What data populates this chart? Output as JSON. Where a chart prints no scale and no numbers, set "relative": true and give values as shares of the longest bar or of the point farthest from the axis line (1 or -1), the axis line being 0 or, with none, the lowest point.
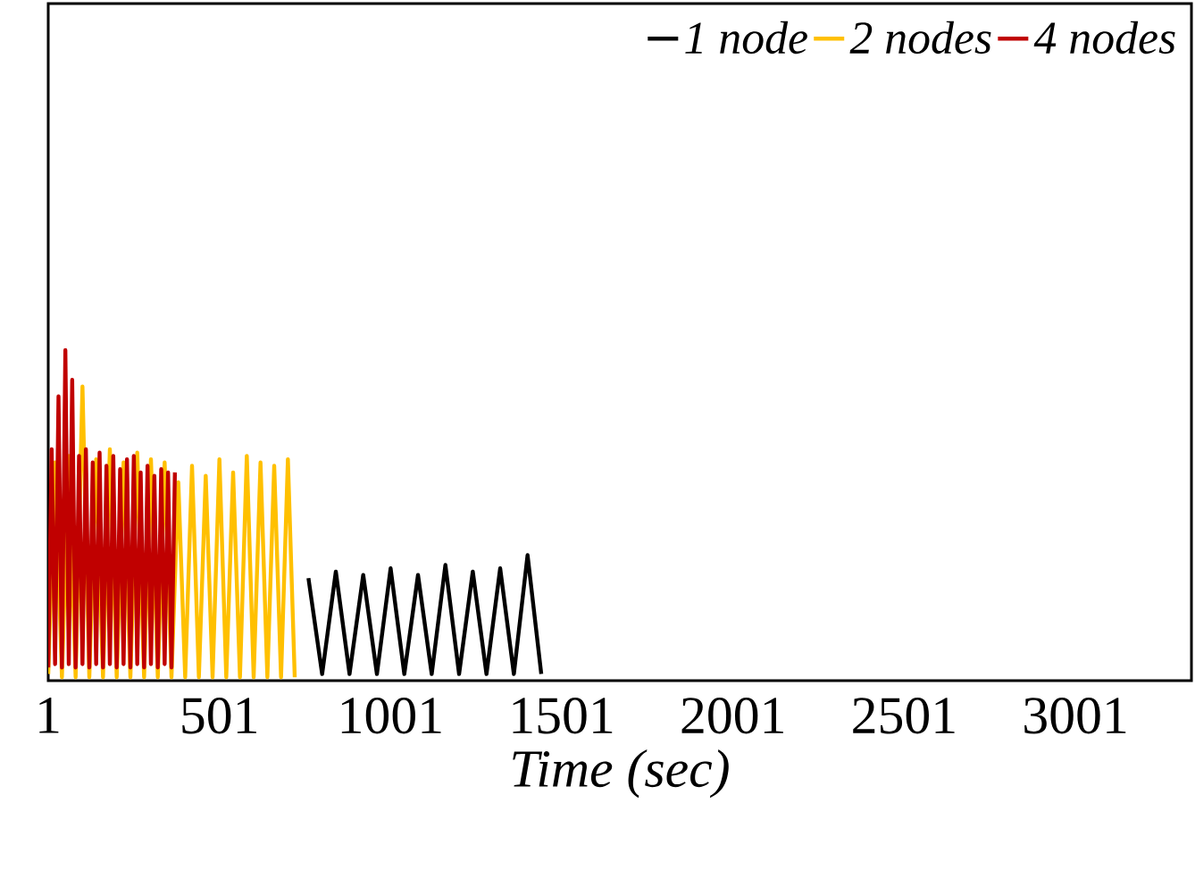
{
  "chart_data": {
    "type": "line",
    "xlabel": "Time (sec)",
    "relative": true,
    "xlim": [
      1,
      3340
    ],
    "xticks": [
      1,
      501,
      1001,
      1501,
      2001,
      2501,
      3001
    ],
    "tick_labels": "x",
    "legend": "top right",
    "marker": "none",
    "line_style": "solid",
    "grid": false,
    "series": [
      {
        "name": "1 node",
        "color": "#000000",
        "x": [
          761,
          801,
          841,
          881,
          921,
          961,
          1001,
          1041,
          1081,
          1121,
          1161,
          1201,
          1241,
          1281,
          1321,
          1361,
          1401,
          1441
        ],
        "values": [
          0.31,
          0.02,
          0.33,
          0.02,
          0.32,
          0.02,
          0.34,
          0.02,
          0.32,
          0.02,
          0.35,
          0.02,
          0.33,
          0.02,
          0.34,
          0.02,
          0.38,
          0.02
        ]
      },
      {
        "name": "2 nodes",
        "color": "#ffc000",
        "x": [
          1,
          21,
          41,
          61,
          81,
          101,
          121,
          141,
          161,
          181,
          201,
          221,
          241,
          261,
          281,
          301,
          321,
          341,
          361,
          381,
          401,
          421,
          441,
          461,
          481,
          501,
          521,
          541,
          561,
          581,
          601,
          621,
          641,
          661,
          681,
          701,
          721
        ],
        "values": [
          0.02,
          0.66,
          0.01,
          0.68,
          0.01,
          0.89,
          0.01,
          0.67,
          0.01,
          0.7,
          0.01,
          0.66,
          0.01,
          0.69,
          0.01,
          0.67,
          0.01,
          0.66,
          0.01,
          0.6,
          0.01,
          0.65,
          0.01,
          0.62,
          0.01,
          0.67,
          0.01,
          0.63,
          0.01,
          0.68,
          0.01,
          0.66,
          0.01,
          0.65,
          0.01,
          0.67,
          0.01
        ]
      },
      {
        "name": "4 nodes",
        "color": "#c00000",
        "x": [
          1,
          11,
          21,
          31,
          41,
          51,
          61,
          71,
          81,
          91,
          101,
          111,
          121,
          131,
          141,
          151,
          161,
          171,
          181,
          191,
          201,
          211,
          221,
          231,
          241,
          251,
          261,
          271,
          281,
          291,
          301,
          311,
          321,
          331,
          341,
          351,
          361,
          371
        ],
        "values": [
          0.04,
          0.7,
          0.05,
          0.86,
          0.04,
          1.0,
          0.05,
          0.91,
          0.04,
          0.68,
          0.05,
          0.7,
          0.04,
          0.66,
          0.05,
          0.69,
          0.04,
          0.65,
          0.05,
          0.68,
          0.04,
          0.64,
          0.05,
          0.67,
          0.04,
          0.68,
          0.05,
          0.63,
          0.04,
          0.65,
          0.05,
          0.62,
          0.04,
          0.64,
          0.05,
          0.63,
          0.04,
          0.63
        ]
      }
    ]
  }
}
